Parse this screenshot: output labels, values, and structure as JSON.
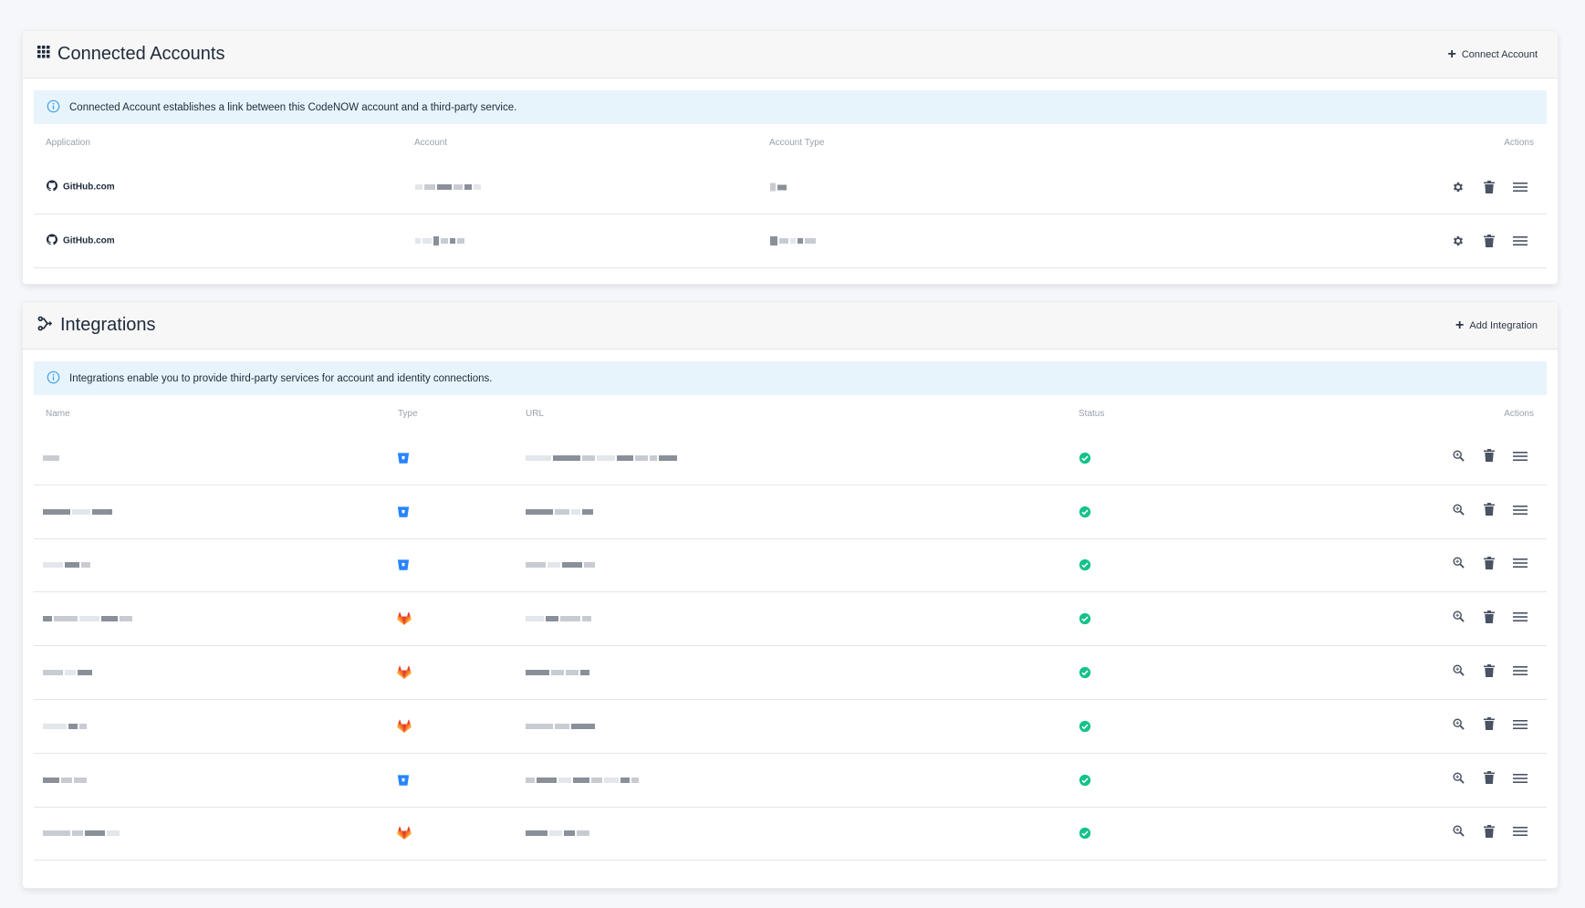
{
  "connected_accounts": {
    "title": "Connected Accounts",
    "connect_label": "Connect Account",
    "info": "Connected Account establishes a link between this CodeNOW account and a third-party service.",
    "columns": {
      "application": "Application",
      "account": "Account",
      "account_type": "Account Type",
      "actions": "Actions"
    },
    "rows": [
      {
        "application": "GitHub.com"
      },
      {
        "application": "GitHub.com"
      }
    ]
  },
  "integrations": {
    "title": "Integrations",
    "add_label": "Add Integration",
    "info": "Integrations enable you to provide third-party services for account and identity connections.",
    "columns": {
      "name": "Name",
      "type": "Type",
      "url": "URL",
      "status": "Status",
      "actions": "Actions"
    },
    "rows": [
      {
        "type": "bitbucket",
        "status": "ok"
      },
      {
        "type": "bitbucket",
        "status": "ok"
      },
      {
        "type": "bitbucket",
        "status": "ok"
      },
      {
        "type": "gitlab",
        "status": "ok"
      },
      {
        "type": "gitlab",
        "status": "ok"
      },
      {
        "type": "gitlab",
        "status": "ok"
      },
      {
        "type": "bitbucket",
        "status": "ok"
      },
      {
        "type": "gitlab",
        "status": "ok"
      }
    ]
  },
  "icons": {
    "header_accounts": "grid-icon",
    "header_integrations": "integration-icon",
    "info": "info-icon",
    "github": "github-icon",
    "bitbucket": "bitbucket-icon",
    "gitlab": "gitlab-icon",
    "settings": "gear-icon",
    "delete": "trash-icon",
    "menu": "menu-icon",
    "view": "magnifier-icon",
    "status": "check-circle-icon"
  },
  "colors": {
    "info_bg": "#e8f4fc",
    "info_icon": "#3aa0e8",
    "bitbucket": "#2684ff",
    "gitlab": "#e24329",
    "status_ok": "#12c28a",
    "action_icon": "#4a5363"
  }
}
